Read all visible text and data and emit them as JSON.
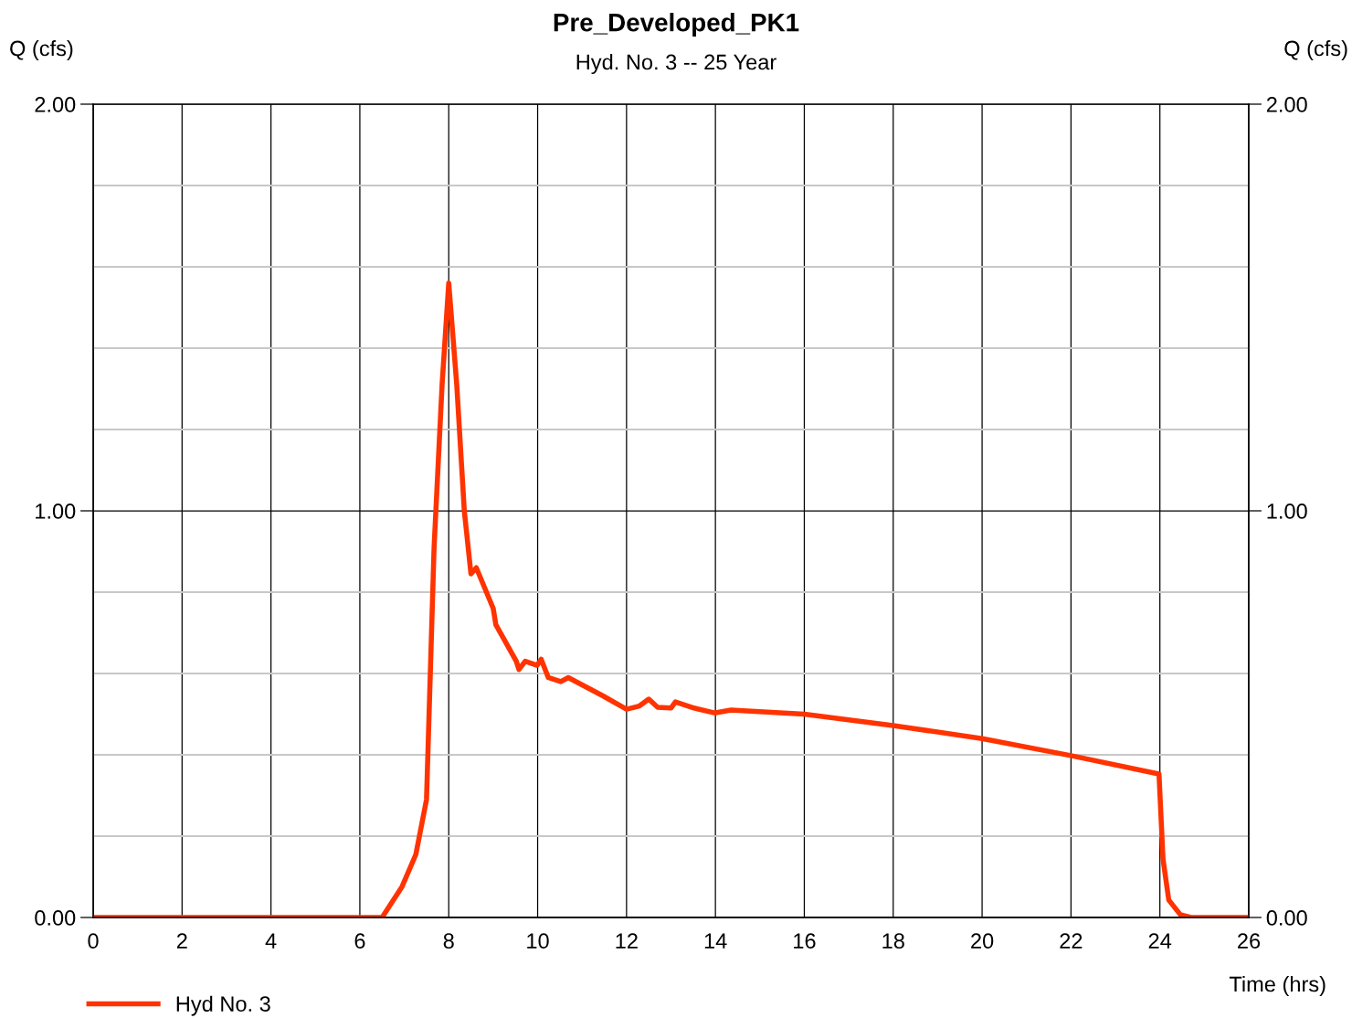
{
  "chart_data": {
    "type": "line",
    "title": "Pre_Developed_PK1",
    "subtitle": "Hyd. No. 3 -- 25 Year",
    "xlabel": "Time (hrs)",
    "ylabel": "Q (cfs)",
    "y2label": "Q (cfs)",
    "xlim": [
      0,
      26
    ],
    "xticks": [
      0,
      2,
      4,
      6,
      8,
      10,
      12,
      14,
      16,
      18,
      20,
      22,
      24,
      26
    ],
    "ylim": [
      0,
      2
    ],
    "yticks": [
      {
        "value": 0,
        "label": "0.00"
      },
      {
        "value": 0.2,
        "label": null
      },
      {
        "value": 0.4,
        "label": null
      },
      {
        "value": 0.6,
        "label": null
      },
      {
        "value": 0.8,
        "label": null
      },
      {
        "value": 1,
        "label": "1.00"
      },
      {
        "value": 1.2,
        "label": null
      },
      {
        "value": 1.4,
        "label": null
      },
      {
        "value": 1.6,
        "label": null
      },
      {
        "value": 1.8,
        "label": null
      },
      {
        "value": 2,
        "label": "2.00"
      }
    ],
    "y2lim": [
      0,
      2
    ],
    "y2ticks": [
      {
        "value": 0,
        "label": "0.00"
      },
      {
        "value": 1,
        "label": "1.00"
      },
      {
        "value": 2,
        "label": "2.00"
      }
    ],
    "grid": true,
    "legend": "bottom left",
    "marker": "none",
    "line_style": "solid",
    "series": [
      {
        "name": "Hyd No. 3",
        "color": "#ff3300",
        "x": [
          0,
          6.5,
          6.95,
          7.26,
          7.5,
          7.67,
          7.85,
          8.0,
          8.18,
          8.35,
          8.5,
          8.62,
          9.0,
          9.06,
          9.52,
          9.58,
          9.72,
          9.99,
          10.08,
          10.24,
          10.52,
          10.69,
          11.47,
          12.0,
          12.29,
          12.5,
          12.7,
          13.0,
          13.1,
          13.52,
          13.98,
          14.35,
          16,
          18,
          20,
          22,
          23.98,
          24.07,
          24.2,
          24.46,
          24.7,
          26
        ],
        "values": [
          0,
          0,
          0.076,
          0.155,
          0.29,
          0.91,
          1.31,
          1.56,
          1.31,
          1.0,
          0.845,
          0.86,
          0.76,
          0.72,
          0.63,
          0.61,
          0.63,
          0.62,
          0.635,
          0.59,
          0.58,
          0.59,
          0.545,
          0.512,
          0.52,
          0.537,
          0.517,
          0.515,
          0.53,
          0.515,
          0.503,
          0.51,
          0.5,
          0.472,
          0.44,
          0.398,
          0.353,
          0.144,
          0.043,
          0.007,
          0,
          0
        ]
      }
    ]
  }
}
